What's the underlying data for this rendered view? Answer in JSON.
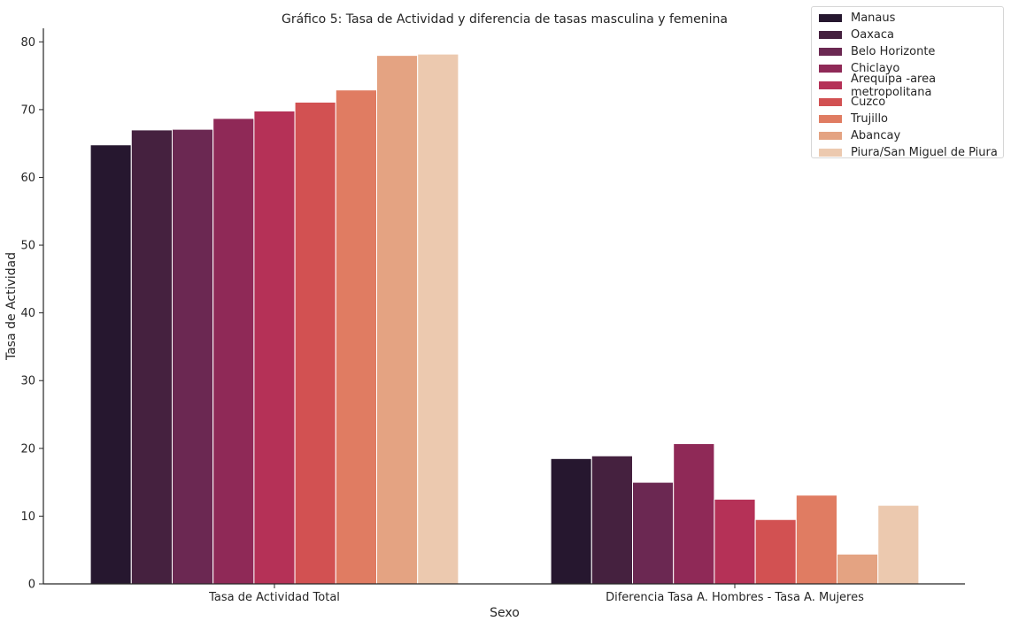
{
  "chart_data": {
    "type": "bar",
    "title": "Gráfico 5: Tasa de Actividad y diferencia de tasas masculina y femenina",
    "xlabel": "Sexo",
    "ylabel": "Tasa de Actividad",
    "ylim": [
      0,
      82
    ],
    "yticks": [
      "0",
      "10",
      "20",
      "30",
      "40",
      "50",
      "60",
      "70",
      "80"
    ],
    "grid": false,
    "legend_position": "top-right",
    "categories": [
      "Tasa de Actividad Total",
      "Diferencia Tasa A. Hombres - Tasa A. Mujeres"
    ],
    "series": [
      {
        "name": "Manaus",
        "color": "#26172f",
        "values": [
          64.8,
          18.5
        ]
      },
      {
        "name": "Oaxaca",
        "color": "#45213f",
        "values": [
          67.0,
          18.9
        ]
      },
      {
        "name": "Belo Horizonte",
        "color": "#6b2852",
        "values": [
          67.1,
          15.0
        ]
      },
      {
        "name": "Chiclayo",
        "color": "#8f2957",
        "values": [
          68.7,
          20.7
        ]
      },
      {
        "name": "Arequipa -area metropolitana",
        "color": "#b53157",
        "values": [
          69.8,
          12.5
        ]
      },
      {
        "name": "Cuzco",
        "color": "#d25152",
        "values": [
          71.1,
          9.5
        ]
      },
      {
        "name": "Trujillo",
        "color": "#e07c62",
        "values": [
          72.9,
          13.1
        ]
      },
      {
        "name": "Abancay",
        "color": "#e4a382",
        "values": [
          78.0,
          4.4
        ]
      },
      {
        "name": "Piura/San Miguel de Piura",
        "color": "#ecc9af",
        "values": [
          78.2,
          11.6
        ]
      }
    ]
  }
}
